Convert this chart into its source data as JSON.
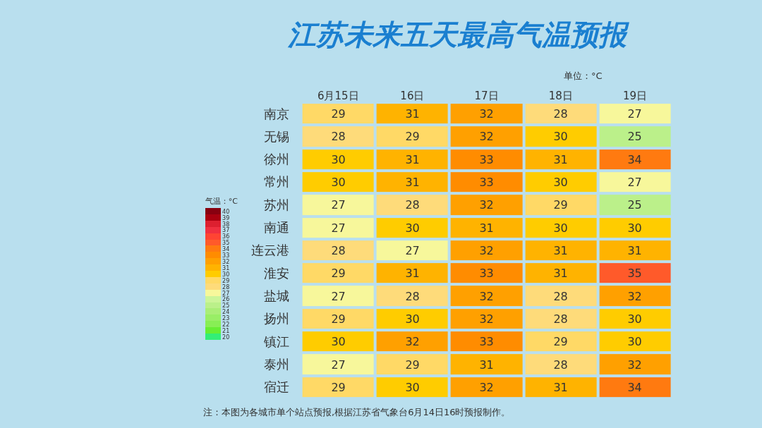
{
  "chart_data": {
    "type": "heatmap",
    "title": "江苏未来五天最高气温预报",
    "annotations": [
      "单位：°C",
      "注：本图为各城市单个站点预报,根据江苏省气象台6月14日16时预报制作。"
    ],
    "categories": [
      "6月15日",
      "16日",
      "17日",
      "18日",
      "19日"
    ],
    "y_categories": [
      "南京",
      "无锡",
      "徐州",
      "常州",
      "苏州",
      "南通",
      "连云港",
      "淮安",
      "盐城",
      "扬州",
      "镇江",
      "泰州",
      "宿迁"
    ],
    "cells": [
      [
        29,
        31,
        32,
        28,
        27
      ],
      [
        28,
        29,
        32,
        30,
        25
      ],
      [
        30,
        31,
        33,
        31,
        34
      ],
      [
        30,
        31,
        33,
        30,
        27
      ],
      [
        27,
        28,
        32,
        29,
        25
      ],
      [
        27,
        30,
        31,
        30,
        30
      ],
      [
        28,
        27,
        32,
        31,
        31
      ],
      [
        29,
        31,
        33,
        31,
        35
      ],
      [
        27,
        28,
        32,
        28,
        32
      ],
      [
        29,
        30,
        32,
        28,
        30
      ],
      [
        30,
        32,
        33,
        29,
        30
      ],
      [
        27,
        29,
        31,
        28,
        32
      ],
      [
        29,
        30,
        32,
        31,
        34
      ]
    ],
    "data_labels": true,
    "clabel": "气温：°C",
    "clim": [
      19.5,
      40.5
    ],
    "cticks": [
      20,
      21,
      22,
      23,
      24,
      25,
      26,
      27,
      28,
      29,
      30,
      31,
      32,
      33,
      34,
      35,
      36,
      37,
      38,
      39,
      40
    ]
  }
}
